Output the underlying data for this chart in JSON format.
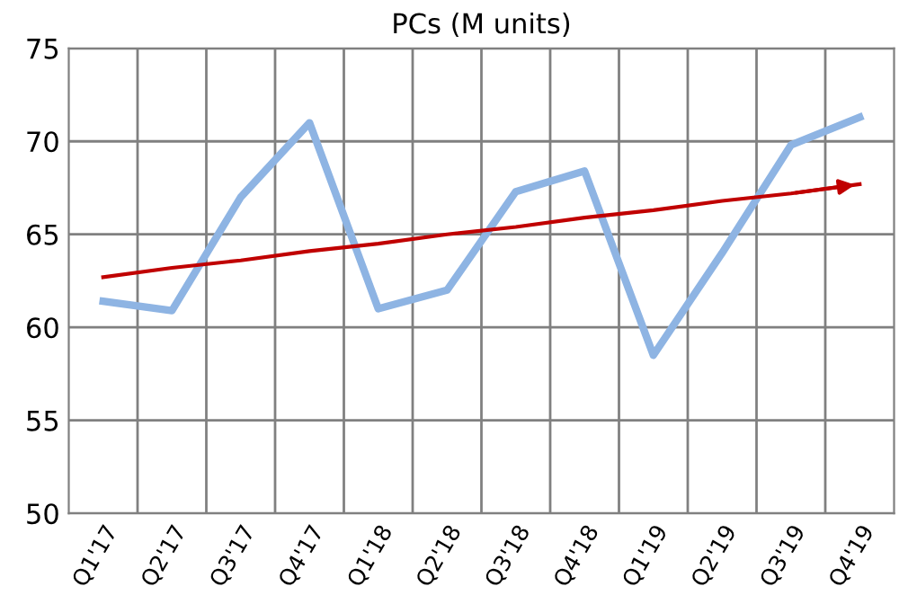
{
  "chart_data": {
    "type": "line",
    "title": "PCs (M units)",
    "categories": [
      "Q1'17",
      "Q2'17",
      "Q3'17",
      "Q4'17",
      "Q1'18",
      "Q2'18",
      "Q3'18",
      "Q4'18",
      "Q1'19",
      "Q2'19",
      "Q3'19",
      "Q4'19"
    ],
    "series": [
      {
        "color": "#8eb4e3",
        "values": [
          61.4,
          60.9,
          67.0,
          71.0,
          61.0,
          62.0,
          67.3,
          68.4,
          58.5,
          64.0,
          69.8,
          71.3
        ]
      },
      {
        "color": "#c00000",
        "values": [
          62.7,
          63.2,
          63.6,
          64.1,
          64.5,
          65.0,
          65.4,
          65.9,
          66.3,
          66.8,
          67.2,
          67.7
        ]
      }
    ],
    "ylim": [
      50,
      75
    ],
    "yticks": [
      50,
      55,
      60,
      65,
      70,
      75
    ],
    "grid": true,
    "marker": "none",
    "line_style": "solid"
  }
}
